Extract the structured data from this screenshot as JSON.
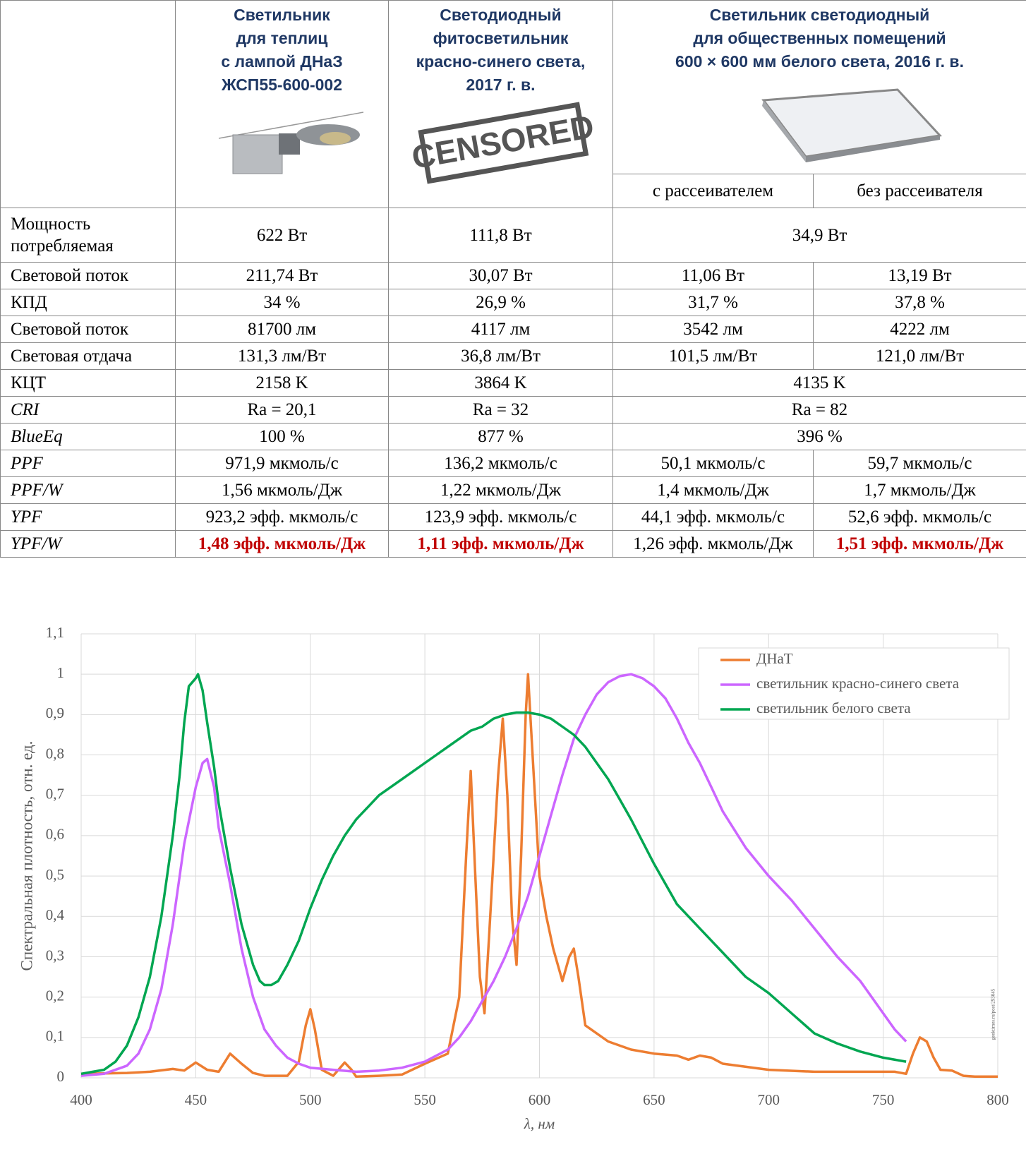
{
  "table": {
    "headers": [
      [
        "Светильник",
        "для теплиц",
        "с лампой ДНаЗ",
        "ЖСП55-600-002"
      ],
      [
        "Светодиодный",
        "фитосветильник",
        "красно-синего света,",
        "2017 г. в."
      ],
      [
        "Светильник светодиодный",
        "для общественных помещений",
        "600 × 600 мм белого света, 2016 г. в."
      ]
    ],
    "stamp": "CENSORED",
    "subheaders": [
      "с рассеивателем",
      "без рассеивателя"
    ],
    "highlight_color": "#c00000",
    "header_color": "#1f3864",
    "rows": [
      {
        "label": "Мощность потребляемая",
        "cells": [
          "622 Вт",
          "111,8 Вт",
          "34,9 Вт"
        ]
      },
      {
        "label": "Световой поток",
        "cells": [
          "211,74 Вт",
          "30,07 Вт",
          "11,06 Вт",
          "13,19 Вт"
        ]
      },
      {
        "label": "КПД",
        "cells": [
          "34 %",
          "26,9 %",
          "31,7 %",
          "37,8 %"
        ]
      },
      {
        "label": "Световой поток",
        "cells": [
          "81700 лм",
          "4117 лм",
          "3542 лм",
          "4222 лм"
        ]
      },
      {
        "label": "Световая отдача",
        "cells": [
          "131,3 лм/Вт",
          "36,8 лм/Вт",
          "101,5 лм/Вт",
          "121,0 лм/Вт"
        ]
      },
      {
        "label": "КЦТ",
        "cells": [
          "2158 K",
          "3864 K",
          "4135 K"
        ]
      },
      {
        "label": "CRI",
        "italic": true,
        "cells": [
          "Ra = 20,1",
          "Ra = 32",
          "Ra = 82"
        ]
      },
      {
        "label": "BlueEq",
        "italic": true,
        "cells": [
          "100 %",
          "877 %",
          "396 %"
        ]
      },
      {
        "label": "PPF",
        "italic": true,
        "cells": [
          "971,9 мкмоль/с",
          "136,2 мкмоль/с",
          "50,1 мкмоль/с",
          "59,7 мкмоль/с"
        ]
      },
      {
        "label": "PPF/W",
        "italic": true,
        "cells": [
          "1,56 мкмоль/Дж",
          "1,22 мкмоль/Дж",
          "1,4 мкмоль/Дж",
          "1,7 мкмоль/Дж"
        ]
      },
      {
        "label": "YPF",
        "italic": true,
        "cells": [
          "923,2 эфф. мкмоль/с",
          "123,9 эфф. мкмоль/с",
          "44,1 эфф. мкмоль/с",
          "52,6 эфф. мкмоль/с"
        ]
      },
      {
        "label": "YPF/W",
        "italic": true,
        "highlight": [
          0,
          1,
          3
        ],
        "cells": [
          "1,48 эфф. мкмоль/Дж",
          "1,11 эфф. мкмоль/Дж",
          "1,26 эфф. мкмоль/Дж",
          "1,51 эфф. мкмоль/Дж"
        ]
      }
    ]
  },
  "chart_data": {
    "type": "line",
    "xlabel": "λ, нм",
    "ylabel": "Спектральная плотность, отн. ед.",
    "watermark": "geektimes.ru/post/293045",
    "xlim": [
      400,
      800
    ],
    "ylim": [
      0,
      1.1
    ],
    "xticks": [
      400,
      450,
      500,
      550,
      600,
      650,
      700,
      750,
      800
    ],
    "yticks": [
      0,
      {
        "value": 0.1,
        "label": "0,1"
      },
      {
        "value": 0.2,
        "label": "0,2"
      },
      {
        "value": 0.3,
        "label": "0,3"
      },
      {
        "value": 0.4,
        "label": "0,4"
      },
      {
        "value": 0.5,
        "label": "0,5"
      },
      {
        "value": 0.6,
        "label": "0,6"
      },
      {
        "value": 0.7,
        "label": "0,7"
      },
      {
        "value": 0.8,
        "label": "0,8"
      },
      {
        "value": 0.9,
        "label": "0,9"
      },
      1,
      {
        "value": 1.1,
        "label": "1,1"
      }
    ],
    "grid": true,
    "legend": "upper right",
    "series": [
      {
        "name": "ДНаТ",
        "color": "#ed7d31",
        "x": [
          400,
          420,
          430,
          440,
          445,
          450,
          455,
          460,
          465,
          470,
          475,
          480,
          490,
          495,
          498,
          500,
          502,
          505,
          510,
          515,
          518,
          520,
          530,
          540,
          550,
          560,
          565,
          568,
          570,
          572,
          574,
          576,
          578,
          582,
          584,
          586,
          588,
          590,
          592,
          594,
          595,
          596,
          598,
          600,
          603,
          606,
          610,
          613,
          615,
          617,
          620,
          630,
          640,
          650,
          660,
          665,
          670,
          675,
          680,
          700,
          720,
          740,
          755,
          760,
          763,
          766,
          769,
          772,
          775,
          780,
          785,
          790,
          800
        ],
        "values": [
          0.01,
          0.012,
          0.015,
          0.022,
          0.018,
          0.038,
          0.02,
          0.015,
          0.06,
          0.035,
          0.012,
          0.005,
          0.005,
          0.04,
          0.13,
          0.17,
          0.12,
          0.02,
          0.005,
          0.038,
          0.02,
          0.003,
          0.005,
          0.008,
          0.035,
          0.06,
          0.2,
          0.55,
          0.76,
          0.5,
          0.25,
          0.16,
          0.35,
          0.75,
          0.89,
          0.7,
          0.4,
          0.28,
          0.55,
          0.9,
          1.0,
          0.9,
          0.7,
          0.5,
          0.4,
          0.32,
          0.24,
          0.3,
          0.32,
          0.25,
          0.13,
          0.09,
          0.07,
          0.06,
          0.055,
          0.045,
          0.055,
          0.05,
          0.035,
          0.02,
          0.015,
          0.015,
          0.015,
          0.01,
          0.06,
          0.1,
          0.09,
          0.05,
          0.02,
          0.018,
          0.005,
          0.003,
          0.003
        ]
      },
      {
        "name": "светильник красно-синего света",
        "color": "#cc66ff",
        "x": [
          400,
          410,
          420,
          425,
          430,
          435,
          440,
          445,
          450,
          453,
          455,
          458,
          460,
          465,
          470,
          475,
          480,
          485,
          490,
          495,
          500,
          510,
          520,
          530,
          540,
          550,
          560,
          565,
          570,
          575,
          580,
          585,
          590,
          595,
          600,
          605,
          610,
          615,
          620,
          625,
          630,
          635,
          640,
          645,
          650,
          655,
          660,
          665,
          670,
          675,
          680,
          690,
          700,
          710,
          720,
          730,
          740,
          750,
          755,
          760
        ],
        "values": [
          0.005,
          0.01,
          0.03,
          0.06,
          0.12,
          0.22,
          0.38,
          0.58,
          0.72,
          0.78,
          0.79,
          0.72,
          0.62,
          0.48,
          0.32,
          0.2,
          0.12,
          0.08,
          0.05,
          0.035,
          0.025,
          0.02,
          0.015,
          0.018,
          0.025,
          0.04,
          0.07,
          0.1,
          0.14,
          0.19,
          0.24,
          0.3,
          0.37,
          0.45,
          0.55,
          0.65,
          0.75,
          0.84,
          0.9,
          0.95,
          0.98,
          0.995,
          1.0,
          0.99,
          0.97,
          0.94,
          0.89,
          0.83,
          0.78,
          0.72,
          0.66,
          0.57,
          0.5,
          0.44,
          0.37,
          0.3,
          0.24,
          0.16,
          0.12,
          0.09
        ]
      },
      {
        "name": "светильник белого света",
        "color": "#00a651",
        "x": [
          400,
          410,
          415,
          420,
          425,
          430,
          435,
          440,
          443,
          445,
          447,
          450,
          451,
          453,
          455,
          458,
          460,
          465,
          470,
          475,
          478,
          480,
          483,
          486,
          490,
          495,
          500,
          505,
          510,
          515,
          520,
          525,
          530,
          535,
          540,
          545,
          550,
          555,
          560,
          565,
          570,
          575,
          580,
          585,
          590,
          595,
          600,
          605,
          610,
          615,
          620,
          625,
          630,
          635,
          640,
          650,
          660,
          670,
          680,
          690,
          700,
          710,
          720,
          730,
          740,
          750,
          760
        ],
        "values": [
          0.01,
          0.02,
          0.04,
          0.08,
          0.15,
          0.25,
          0.4,
          0.6,
          0.75,
          0.88,
          0.97,
          0.99,
          1.0,
          0.96,
          0.88,
          0.77,
          0.68,
          0.52,
          0.38,
          0.28,
          0.24,
          0.23,
          0.23,
          0.24,
          0.28,
          0.34,
          0.42,
          0.49,
          0.55,
          0.6,
          0.64,
          0.67,
          0.7,
          0.72,
          0.74,
          0.76,
          0.78,
          0.8,
          0.82,
          0.84,
          0.86,
          0.87,
          0.89,
          0.9,
          0.905,
          0.905,
          0.9,
          0.89,
          0.87,
          0.85,
          0.82,
          0.78,
          0.74,
          0.69,
          0.64,
          0.53,
          0.43,
          0.37,
          0.31,
          0.25,
          0.21,
          0.16,
          0.11,
          0.085,
          0.065,
          0.05,
          0.04
        ]
      }
    ]
  }
}
